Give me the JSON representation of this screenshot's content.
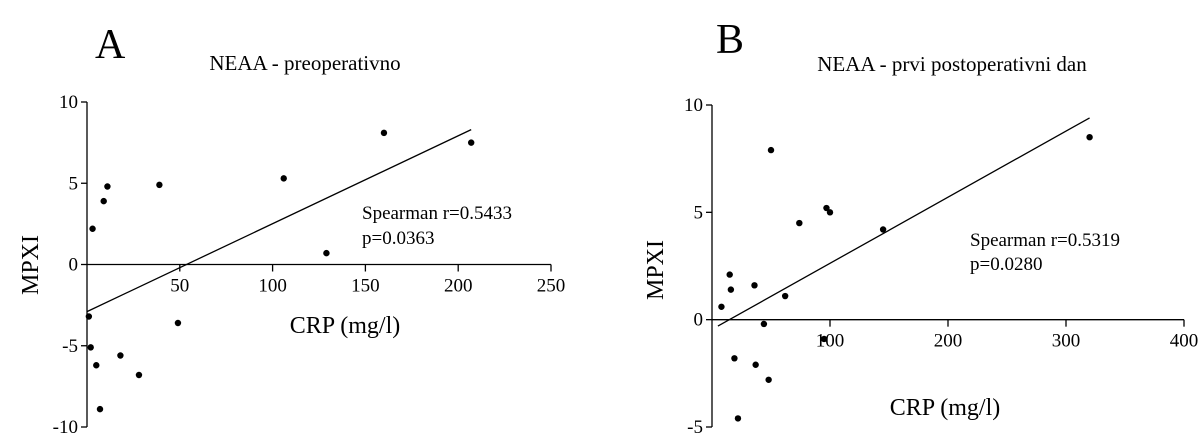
{
  "chart_data": [
    {
      "type": "scatter",
      "panel": "A",
      "title": "NEAA - preoperativno",
      "xlabel": "CRP (mg/l)",
      "ylabel": "MPXI",
      "xlim": [
        0,
        250
      ],
      "ylim": [
        -10,
        10
      ],
      "xticks": [
        50,
        100,
        150,
        200,
        250
      ],
      "xtick_labels": [
        "50",
        "100",
        "150",
        "200",
        "250"
      ],
      "yticks": [
        -10,
        -5,
        0,
        5,
        10
      ],
      "ytick_labels": [
        "-10",
        "-5",
        "0",
        "5",
        "10"
      ],
      "x_axis_at_y": 0,
      "grid": false,
      "points": [
        {
          "x": 1,
          "y": -3.2
        },
        {
          "x": 2,
          "y": -5.1
        },
        {
          "x": 3,
          "y": 2.2
        },
        {
          "x": 5,
          "y": -6.2
        },
        {
          "x": 7,
          "y": -8.9
        },
        {
          "x": 9,
          "y": 3.9
        },
        {
          "x": 11,
          "y": 4.8
        },
        {
          "x": 18,
          "y": -5.6
        },
        {
          "x": 28,
          "y": -6.8
        },
        {
          "x": 39,
          "y": 4.9
        },
        {
          "x": 49,
          "y": -3.6
        },
        {
          "x": 106,
          "y": 5.3
        },
        {
          "x": 129,
          "y": 0.7
        },
        {
          "x": 160,
          "y": 8.1
        },
        {
          "x": 207,
          "y": 7.5
        }
      ],
      "fit_line": {
        "x0": 0,
        "y0": -2.9,
        "x1": 207,
        "y1": 8.3
      },
      "annotation": [
        "Spearman r=0.5433",
        "p=0.0363"
      ]
    },
    {
      "type": "scatter",
      "panel": "B",
      "title": "NEAA - prvi postoperativni dan",
      "xlabel": "CRP (mg/l)",
      "ylabel": "MPXI",
      "xlim": [
        0,
        400
      ],
      "ylim": [
        -5,
        10
      ],
      "xticks": [
        100,
        200,
        300,
        400
      ],
      "xtick_labels": [
        "100",
        "200",
        "300",
        "400"
      ],
      "yticks": [
        -5,
        0,
        5,
        10
      ],
      "ytick_labels": [
        "-5",
        "0",
        "5",
        "10"
      ],
      "x_axis_at_y": 0,
      "grid": false,
      "points": [
        {
          "x": 8,
          "y": 0.6
        },
        {
          "x": 15,
          "y": 2.1
        },
        {
          "x": 16,
          "y": 1.4
        },
        {
          "x": 19,
          "y": -1.8
        },
        {
          "x": 22,
          "y": -4.6
        },
        {
          "x": 36,
          "y": 1.6
        },
        {
          "x": 37,
          "y": -2.1
        },
        {
          "x": 44,
          "y": -0.2
        },
        {
          "x": 48,
          "y": -2.8
        },
        {
          "x": 50,
          "y": 7.9
        },
        {
          "x": 62,
          "y": 1.1
        },
        {
          "x": 74,
          "y": 4.5
        },
        {
          "x": 95,
          "y": -0.9
        },
        {
          "x": 97,
          "y": 5.2
        },
        {
          "x": 100,
          "y": 5.0
        },
        {
          "x": 145,
          "y": 4.2
        },
        {
          "x": 320,
          "y": 8.5
        }
      ],
      "fit_line": {
        "x0": 5,
        "y0": -0.3,
        "x1": 320,
        "y1": 9.4
      },
      "annotation": [
        "Spearman r=0.5319",
        "p=0.0280"
      ]
    }
  ]
}
